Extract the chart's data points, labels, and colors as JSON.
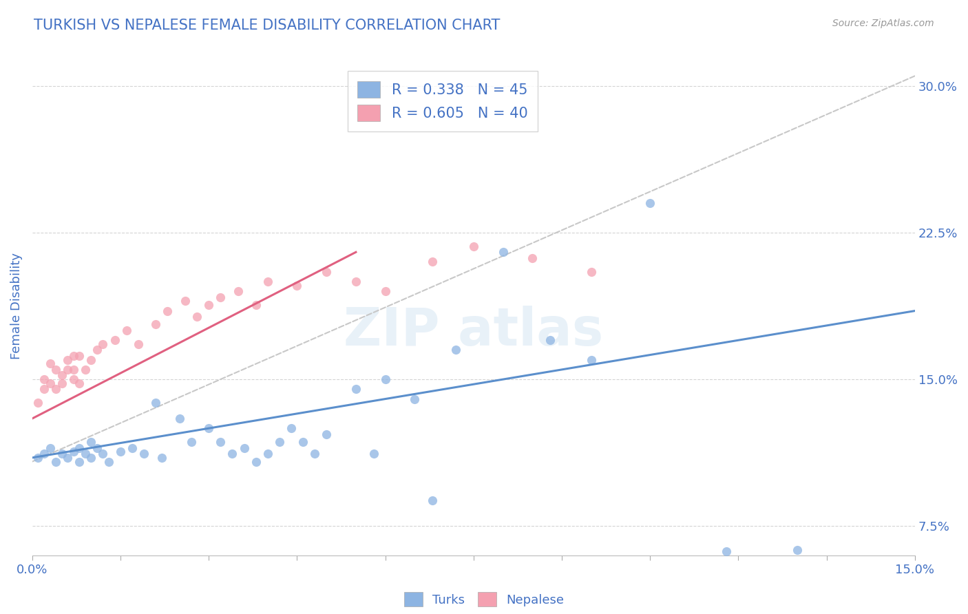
{
  "title": "TURKISH VS NEPALESE FEMALE DISABILITY CORRELATION CHART",
  "source": "Source: ZipAtlas.com",
  "ylabel": "Female Disability",
  "xlim": [
    0.0,
    0.15
  ],
  "ylim": [
    0.06,
    0.315
  ],
  "yticks": [
    0.075,
    0.15,
    0.225,
    0.3
  ],
  "ytick_labels": [
    "7.5%",
    "15.0%",
    "22.5%",
    "30.0%"
  ],
  "xticks": [
    0.0,
    0.015,
    0.03,
    0.045,
    0.06,
    0.075,
    0.09,
    0.105,
    0.12,
    0.135,
    0.15
  ],
  "turks_R": 0.338,
  "turks_N": 45,
  "nepalese_R": 0.605,
  "nepalese_N": 40,
  "turks_color": "#8db4e2",
  "nepalese_color": "#f4a0b0",
  "turks_line_color": "#5b8fcc",
  "nepalese_line_color": "#e06080",
  "ref_line_color": "#c8c8c8",
  "title_color": "#4472c4",
  "axis_color": "#4472c4",
  "background_color": "#ffffff",
  "grid_color": "#d0d0d0",
  "turks_x": [
    0.001,
    0.002,
    0.003,
    0.004,
    0.005,
    0.006,
    0.007,
    0.008,
    0.008,
    0.009,
    0.01,
    0.01,
    0.011,
    0.012,
    0.013,
    0.015,
    0.017,
    0.019,
    0.021,
    0.022,
    0.025,
    0.027,
    0.03,
    0.032,
    0.034,
    0.036,
    0.038,
    0.04,
    0.042,
    0.044,
    0.046,
    0.048,
    0.05,
    0.055,
    0.058,
    0.06,
    0.065,
    0.068,
    0.072,
    0.08,
    0.088,
    0.095,
    0.105,
    0.118,
    0.13
  ],
  "turks_y": [
    0.11,
    0.112,
    0.115,
    0.108,
    0.112,
    0.11,
    0.113,
    0.115,
    0.108,
    0.112,
    0.11,
    0.118,
    0.115,
    0.112,
    0.108,
    0.113,
    0.115,
    0.112,
    0.138,
    0.11,
    0.13,
    0.118,
    0.125,
    0.118,
    0.112,
    0.115,
    0.108,
    0.112,
    0.118,
    0.125,
    0.118,
    0.112,
    0.122,
    0.145,
    0.112,
    0.15,
    0.14,
    0.088,
    0.165,
    0.215,
    0.17,
    0.16,
    0.24,
    0.062,
    0.063
  ],
  "nepalese_x": [
    0.001,
    0.002,
    0.002,
    0.003,
    0.003,
    0.004,
    0.004,
    0.005,
    0.005,
    0.006,
    0.006,
    0.007,
    0.007,
    0.007,
    0.008,
    0.008,
    0.009,
    0.01,
    0.011,
    0.012,
    0.014,
    0.016,
    0.018,
    0.021,
    0.023,
    0.026,
    0.028,
    0.03,
    0.032,
    0.035,
    0.038,
    0.04,
    0.045,
    0.05,
    0.055,
    0.06,
    0.068,
    0.075,
    0.085,
    0.095
  ],
  "nepalese_y": [
    0.138,
    0.15,
    0.145,
    0.158,
    0.148,
    0.155,
    0.145,
    0.152,
    0.148,
    0.16,
    0.155,
    0.162,
    0.15,
    0.155,
    0.162,
    0.148,
    0.155,
    0.16,
    0.165,
    0.168,
    0.17,
    0.175,
    0.168,
    0.178,
    0.185,
    0.19,
    0.182,
    0.188,
    0.192,
    0.195,
    0.188,
    0.2,
    0.198,
    0.205,
    0.2,
    0.195,
    0.21,
    0.218,
    0.212,
    0.205
  ],
  "ref_line_x": [
    0.0,
    0.15
  ],
  "ref_line_y": [
    0.108,
    0.305
  ]
}
